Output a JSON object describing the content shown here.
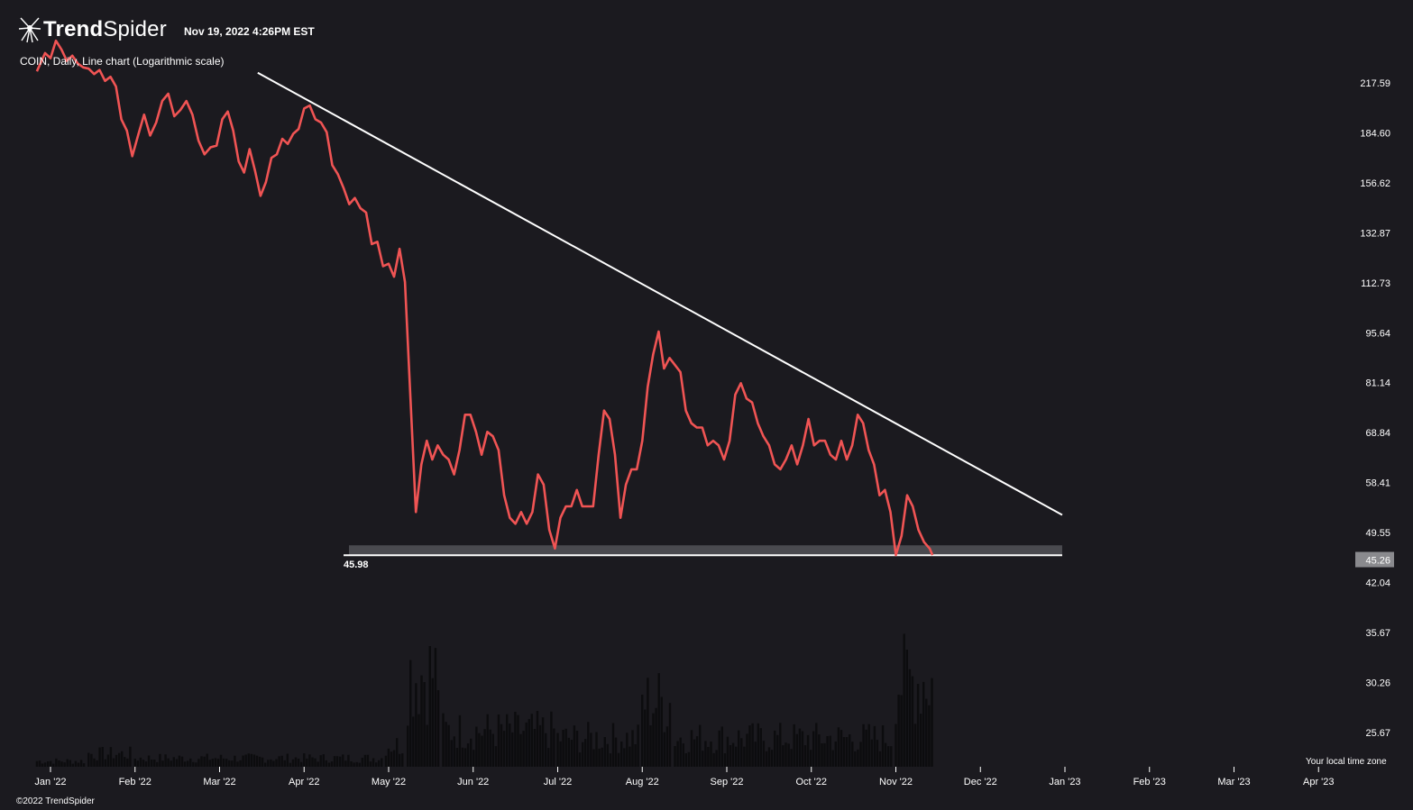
{
  "header": {
    "brand_bold": "Trend",
    "brand_light": "Spider",
    "timestamp": "Nov 19, 2022 4:26PM EST",
    "symbol_line": "COIN, Daily, Line chart (Logarithmic scale)"
  },
  "footer": {
    "timezone": "Your local time zone",
    "copyright": "©2022 TrendSpider"
  },
  "colors": {
    "background": "#1b1a1f",
    "price_line": "#f05454",
    "trendline": "#ffffff",
    "support_zone": "#4a4a4f",
    "volume": "#0c0c0e"
  },
  "chart_data": {
    "type": "line",
    "scale": "log",
    "ylim": [
      21.5,
      245
    ],
    "y_ticks": [
      "217.59",
      "184.60",
      "156.62",
      "132.87",
      "112.73",
      "95.64",
      "81.14",
      "68.84",
      "58.41",
      "49.55",
      "42.04",
      "35.67",
      "30.26",
      "25.67"
    ],
    "x_ticks": [
      {
        "label": "Jan '22",
        "date": "2022-01-01"
      },
      {
        "label": "Feb '22",
        "date": "2022-02-01"
      },
      {
        "label": "Mar '22",
        "date": "2022-03-01"
      },
      {
        "label": "Apr '22",
        "date": "2022-04-01"
      },
      {
        "label": "May '22",
        "date": "2022-05-01"
      },
      {
        "label": "Jun '22",
        "date": "2022-06-01"
      },
      {
        "label": "Jul '22",
        "date": "2022-07-01"
      },
      {
        "label": "Aug '22",
        "date": "2022-08-01"
      },
      {
        "label": "Sep '22",
        "date": "2022-09-01"
      },
      {
        "label": "Oct '22",
        "date": "2022-10-01"
      },
      {
        "label": "Nov '22",
        "date": "2022-11-01"
      },
      {
        "label": "Dec '22",
        "date": "2022-12-01"
      },
      {
        "label": "Jan '23",
        "date": "2023-01-01"
      },
      {
        "label": "Feb '23",
        "date": "2023-02-01"
      },
      {
        "label": "Mar '23",
        "date": "2023-03-01"
      },
      {
        "label": "Apr '23",
        "date": "2023-04-01"
      }
    ],
    "series": [
      {
        "points": [
          [
            "2021-12-27",
            226
          ],
          [
            "2021-12-30",
            240
          ],
          [
            "2022-01-01",
            236
          ],
          [
            "2022-01-03",
            250
          ],
          [
            "2022-01-05",
            243
          ],
          [
            "2022-01-07",
            234
          ],
          [
            "2022-01-09",
            238
          ],
          [
            "2022-01-11",
            232
          ],
          [
            "2022-01-13",
            229
          ],
          [
            "2022-01-15",
            228
          ],
          [
            "2022-01-17",
            224
          ],
          [
            "2022-01-19",
            227
          ],
          [
            "2022-01-21",
            219
          ],
          [
            "2022-01-23",
            222
          ],
          [
            "2022-01-25",
            215
          ],
          [
            "2022-01-27",
            193
          ],
          [
            "2022-01-29",
            186
          ],
          [
            "2022-01-31",
            171
          ],
          [
            "2022-02-02",
            183
          ],
          [
            "2022-02-04",
            196
          ],
          [
            "2022-02-06",
            183
          ],
          [
            "2022-02-08",
            191
          ],
          [
            "2022-02-10",
            205
          ],
          [
            "2022-02-12",
            210
          ],
          [
            "2022-02-14",
            195
          ],
          [
            "2022-02-16",
            199
          ],
          [
            "2022-02-18",
            205
          ],
          [
            "2022-02-20",
            196
          ],
          [
            "2022-02-22",
            180
          ],
          [
            "2022-02-24",
            172
          ],
          [
            "2022-02-26",
            176
          ],
          [
            "2022-02-28",
            177
          ],
          [
            "2022-03-02",
            193
          ],
          [
            "2022-03-04",
            198
          ],
          [
            "2022-03-06",
            186
          ],
          [
            "2022-03-08",
            168
          ],
          [
            "2022-03-10",
            162
          ],
          [
            "2022-03-12",
            175
          ],
          [
            "2022-03-14",
            163
          ],
          [
            "2022-03-16",
            150
          ],
          [
            "2022-03-18",
            157
          ],
          [
            "2022-03-20",
            170
          ],
          [
            "2022-03-22",
            172
          ],
          [
            "2022-03-24",
            181
          ],
          [
            "2022-03-26",
            178
          ],
          [
            "2022-03-28",
            184
          ],
          [
            "2022-03-30",
            187
          ],
          [
            "2022-04-01",
            200
          ],
          [
            "2022-04-03",
            202
          ],
          [
            "2022-04-05",
            193
          ],
          [
            "2022-04-07",
            191
          ],
          [
            "2022-04-09",
            185
          ],
          [
            "2022-04-11",
            166
          ],
          [
            "2022-04-13",
            161
          ],
          [
            "2022-04-15",
            154
          ],
          [
            "2022-04-17",
            146
          ],
          [
            "2022-04-19",
            149
          ],
          [
            "2022-04-21",
            144
          ],
          [
            "2022-04-23",
            142
          ],
          [
            "2022-04-25",
            128
          ],
          [
            "2022-04-27",
            129
          ],
          [
            "2022-04-29",
            119
          ],
          [
            "2022-05-01",
            120
          ],
          [
            "2022-05-03",
            115
          ],
          [
            "2022-05-05",
            126
          ],
          [
            "2022-05-07",
            113
          ],
          [
            "2022-05-09",
            77
          ],
          [
            "2022-05-11",
            53
          ],
          [
            "2022-05-13",
            62
          ],
          [
            "2022-05-15",
            67
          ],
          [
            "2022-05-17",
            63
          ],
          [
            "2022-05-19",
            66
          ],
          [
            "2022-05-21",
            64
          ],
          [
            "2022-05-23",
            63
          ],
          [
            "2022-05-25",
            60
          ],
          [
            "2022-05-27",
            65
          ],
          [
            "2022-05-29",
            73
          ],
          [
            "2022-05-31",
            73
          ],
          [
            "2022-06-02",
            69
          ],
          [
            "2022-06-04",
            64
          ],
          [
            "2022-06-06",
            69
          ],
          [
            "2022-06-08",
            68
          ],
          [
            "2022-06-10",
            65
          ],
          [
            "2022-06-12",
            56
          ],
          [
            "2022-06-14",
            52
          ],
          [
            "2022-06-16",
            51
          ],
          [
            "2022-06-18",
            53
          ],
          [
            "2022-06-20",
            51
          ],
          [
            "2022-06-22",
            53
          ],
          [
            "2022-06-24",
            60
          ],
          [
            "2022-06-26",
            58
          ],
          [
            "2022-06-28",
            50
          ],
          [
            "2022-06-30",
            47
          ],
          [
            "2022-07-02",
            52
          ],
          [
            "2022-07-04",
            54
          ],
          [
            "2022-07-06",
            54
          ],
          [
            "2022-07-08",
            57
          ],
          [
            "2022-07-10",
            54
          ],
          [
            "2022-07-12",
            54
          ],
          [
            "2022-07-14",
            54
          ],
          [
            "2022-07-16",
            64
          ],
          [
            "2022-07-18",
            74
          ],
          [
            "2022-07-20",
            72
          ],
          [
            "2022-07-22",
            64
          ],
          [
            "2022-07-24",
            52
          ],
          [
            "2022-07-26",
            58
          ],
          [
            "2022-07-28",
            61
          ],
          [
            "2022-07-30",
            61
          ],
          [
            "2022-08-01",
            67
          ],
          [
            "2022-08-03",
            80
          ],
          [
            "2022-08-05",
            89
          ],
          [
            "2022-08-07",
            96
          ],
          [
            "2022-08-09",
            85
          ],
          [
            "2022-08-11",
            88
          ],
          [
            "2022-08-13",
            86
          ],
          [
            "2022-08-15",
            84
          ],
          [
            "2022-08-17",
            74
          ],
          [
            "2022-08-19",
            71
          ],
          [
            "2022-08-21",
            70
          ],
          [
            "2022-08-23",
            70
          ],
          [
            "2022-08-25",
            66
          ],
          [
            "2022-08-27",
            67
          ],
          [
            "2022-08-29",
            66
          ],
          [
            "2022-08-31",
            63
          ],
          [
            "2022-09-02",
            67
          ],
          [
            "2022-09-04",
            78
          ],
          [
            "2022-09-06",
            81
          ],
          [
            "2022-09-08",
            77
          ],
          [
            "2022-09-10",
            76
          ],
          [
            "2022-09-12",
            71
          ],
          [
            "2022-09-14",
            68
          ],
          [
            "2022-09-16",
            66
          ],
          [
            "2022-09-18",
            62
          ],
          [
            "2022-09-20",
            61
          ],
          [
            "2022-09-22",
            63
          ],
          [
            "2022-09-24",
            66
          ],
          [
            "2022-09-26",
            62
          ],
          [
            "2022-09-28",
            66
          ],
          [
            "2022-09-30",
            72
          ],
          [
            "2022-10-02",
            66
          ],
          [
            "2022-10-04",
            67
          ],
          [
            "2022-10-06",
            67
          ],
          [
            "2022-10-08",
            64
          ],
          [
            "2022-10-10",
            63
          ],
          [
            "2022-10-12",
            67
          ],
          [
            "2022-10-14",
            63
          ],
          [
            "2022-10-16",
            66
          ],
          [
            "2022-10-18",
            73
          ],
          [
            "2022-10-20",
            71
          ],
          [
            "2022-10-22",
            65
          ],
          [
            "2022-10-24",
            62
          ],
          [
            "2022-10-26",
            56
          ],
          [
            "2022-10-28",
            57
          ],
          [
            "2022-10-30",
            53
          ],
          [
            "2022-11-01",
            46
          ],
          [
            "2022-11-03",
            49
          ],
          [
            "2022-11-05",
            56
          ],
          [
            "2022-11-07",
            54
          ],
          [
            "2022-11-09",
            50
          ],
          [
            "2022-11-11",
            48
          ],
          [
            "2022-11-13",
            47
          ],
          [
            "2022-11-14",
            46
          ]
        ]
      }
    ],
    "volume": [
      {
        "from": "2021-12-27",
        "to": "2022-01-14",
        "level": 0.04
      },
      {
        "from": "2022-01-15",
        "to": "2022-01-31",
        "level": 0.09
      },
      {
        "from": "2022-02-01",
        "to": "2022-04-29",
        "level": 0.06
      },
      {
        "from": "2022-04-30",
        "to": "2022-05-07",
        "level": 0.15
      },
      {
        "from": "2022-05-08",
        "to": "2022-05-20",
        "level": 0.65
      },
      {
        "from": "2022-05-21",
        "to": "2022-06-30",
        "level": 0.25
      },
      {
        "from": "2022-07-01",
        "to": "2022-07-31",
        "level": 0.2
      },
      {
        "from": "2022-08-01",
        "to": "2022-08-12",
        "level": 0.45
      },
      {
        "from": "2022-08-13",
        "to": "2022-10-31",
        "level": 0.2
      },
      {
        "from": "2022-11-01",
        "to": "2022-11-14",
        "level": 0.6
      }
    ],
    "trendline": {
      "start": [
        "2022-03-15",
        225
      ],
      "end": [
        "2022-12-31",
        52.5
      ]
    },
    "support": {
      "value": 45.98,
      "label": "45.98",
      "from": "2022-04-15",
      "to": "2022-12-31",
      "zone_top": 47.5
    },
    "last_price": {
      "value": 45.26,
      "label": "45.26"
    },
    "grid": false
  }
}
